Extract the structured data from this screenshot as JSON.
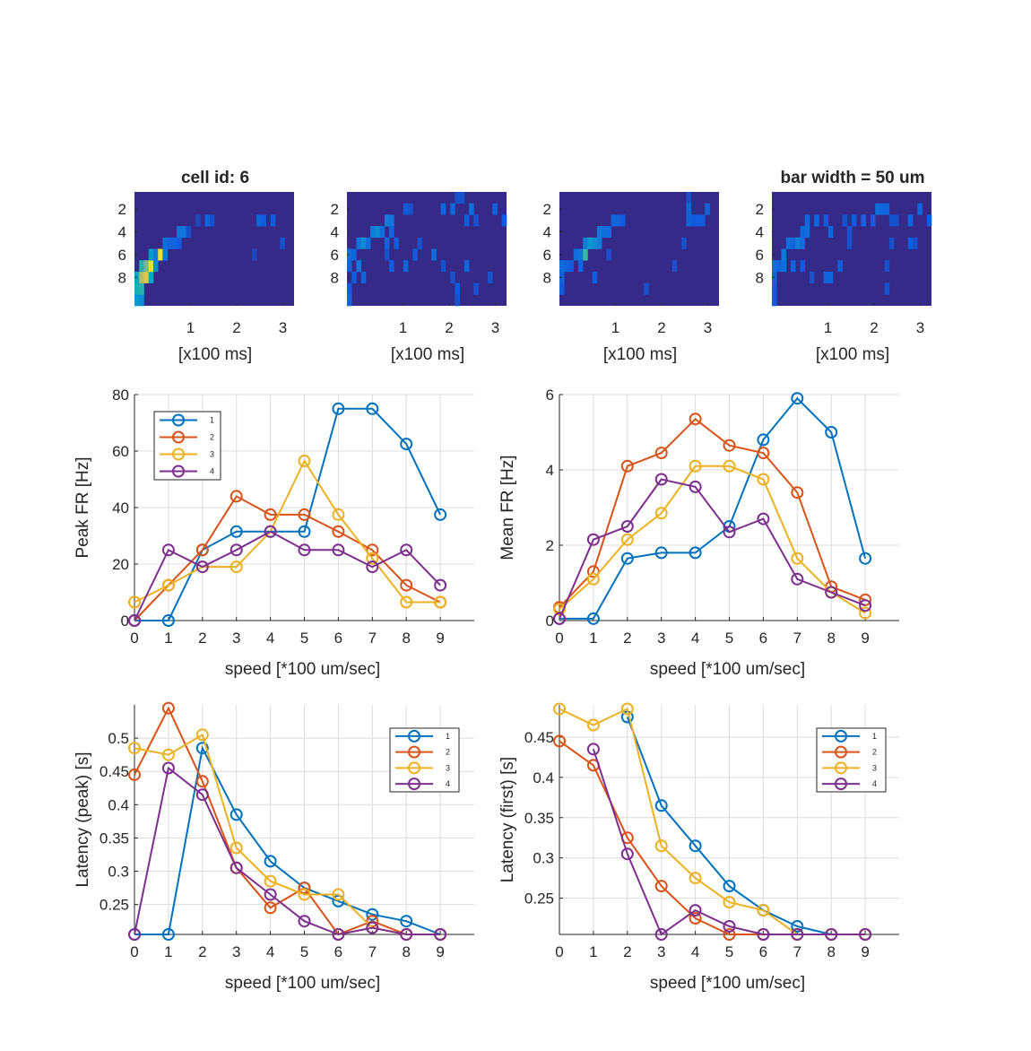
{
  "figure": {
    "heatmap_title_left": "cell id: 6",
    "heatmap_title_right": "bar width = 50 um"
  },
  "colors": {
    "series": [
      "#0072BD",
      "#D95319",
      "#EDB120",
      "#7E2F8E"
    ],
    "heatmap_background": "#352A87",
    "grid": "#DCDCDC",
    "axis": "#262626"
  },
  "chart_data": [
    {
      "type": "heatmap",
      "xlabel": "[x100 ms]",
      "ytick_labels": [
        "2",
        "4",
        "6",
        "8"
      ],
      "xtick_labels": [
        "1",
        "2",
        "3"
      ],
      "rows": 10,
      "cols": 34,
      "cells": [
        [
          9,
          0,
          0.55
        ],
        [
          9,
          1,
          0.5
        ],
        [
          8,
          0,
          0.65
        ],
        [
          8,
          1,
          0.7
        ],
        [
          7,
          0,
          0.6
        ],
        [
          7,
          1,
          0.85
        ],
        [
          7,
          2,
          0.9
        ],
        [
          7,
          3,
          0.6
        ],
        [
          6,
          1,
          0.7
        ],
        [
          6,
          2,
          0.8
        ],
        [
          6,
          3,
          0.95
        ],
        [
          6,
          4,
          0.5
        ],
        [
          5,
          3,
          0.55
        ],
        [
          5,
          4,
          0.45
        ],
        [
          5,
          5,
          0.95
        ],
        [
          5,
          6,
          0.4
        ],
        [
          4,
          6,
          0.35
        ],
        [
          4,
          7,
          0.3
        ],
        [
          4,
          8,
          0.3
        ],
        [
          4,
          9,
          0.25
        ],
        [
          3,
          9,
          0.4
        ],
        [
          3,
          10,
          0.4
        ],
        [
          3,
          11,
          0.2
        ],
        [
          2,
          13,
          0.15
        ],
        [
          2,
          15,
          0.3
        ],
        [
          2,
          16,
          0.2
        ],
        [
          5,
          25,
          0.15
        ],
        [
          2,
          26,
          0.3
        ],
        [
          2,
          27,
          0.25
        ],
        [
          2,
          29,
          0.25
        ],
        [
          4,
          31,
          0.2
        ]
      ]
    },
    {
      "type": "heatmap",
      "xlabel": "[x100 ms]",
      "ytick_labels": [
        "2",
        "4",
        "6",
        "8"
      ],
      "xtick_labels": [
        "1",
        "2",
        "3"
      ],
      "rows": 10,
      "cols": 34,
      "cells": [
        [
          5,
          0,
          0.35
        ],
        [
          5,
          1,
          0.3
        ],
        [
          6,
          0,
          0.3
        ],
        [
          6,
          2,
          0.4
        ],
        [
          7,
          1,
          0.25
        ],
        [
          7,
          3,
          0.3
        ],
        [
          8,
          0,
          0.25
        ],
        [
          9,
          0,
          0.3
        ],
        [
          4,
          2,
          0.4
        ],
        [
          4,
          3,
          0.5
        ],
        [
          4,
          4,
          0.35
        ],
        [
          3,
          5,
          0.45
        ],
        [
          3,
          6,
          0.5
        ],
        [
          3,
          7,
          0.35
        ],
        [
          2,
          8,
          0.45
        ],
        [
          2,
          9,
          0.4
        ],
        [
          4,
          8,
          0.3
        ],
        [
          3,
          9,
          0.3
        ],
        [
          4,
          10,
          0.25
        ],
        [
          1,
          12,
          0.25
        ],
        [
          1,
          13,
          0.2
        ],
        [
          5,
          8,
          0.2
        ],
        [
          6,
          9,
          0.25
        ],
        [
          6,
          12,
          0.3
        ],
        [
          5,
          18,
          0.35
        ],
        [
          6,
          20,
          0.2
        ],
        [
          7,
          22,
          0.2
        ],
        [
          8,
          23,
          0.25
        ],
        [
          1,
          20,
          0.3
        ],
        [
          1,
          22,
          0.3
        ],
        [
          0,
          23,
          0.2
        ],
        [
          0,
          24,
          0.2
        ],
        [
          2,
          25,
          0.25
        ],
        [
          1,
          26,
          0.35
        ],
        [
          2,
          27,
          0.2
        ],
        [
          1,
          31,
          0.3
        ],
        [
          2,
          33,
          0.25
        ],
        [
          6,
          25,
          0.3
        ],
        [
          8,
          27,
          0.2
        ],
        [
          9,
          23,
          0.2
        ],
        [
          7,
          30,
          0.2
        ],
        [
          4,
          15,
          0.2
        ],
        [
          5,
          14,
          0.25
        ]
      ]
    },
    {
      "type": "heatmap",
      "xlabel": "[x100 ms]",
      "ytick_labels": [
        "2",
        "4",
        "6",
        "8"
      ],
      "xtick_labels": [
        "1",
        "2",
        "3"
      ],
      "rows": 10,
      "cols": 34,
      "cells": [
        [
          6,
          0,
          0.35
        ],
        [
          6,
          1,
          0.3
        ],
        [
          6,
          2,
          0.25
        ],
        [
          7,
          0,
          0.3
        ],
        [
          8,
          0,
          0.25
        ],
        [
          5,
          3,
          0.35
        ],
        [
          5,
          4,
          0.4
        ],
        [
          5,
          5,
          0.75
        ],
        [
          4,
          5,
          0.45
        ],
        [
          4,
          6,
          0.55
        ],
        [
          4,
          7,
          0.5
        ],
        [
          4,
          8,
          0.45
        ],
        [
          3,
          8,
          0.4
        ],
        [
          3,
          9,
          0.35
        ],
        [
          3,
          10,
          0.35
        ],
        [
          2,
          11,
          0.3
        ],
        [
          2,
          12,
          0.3
        ],
        [
          2,
          13,
          0.25
        ],
        [
          6,
          4,
          0.3
        ],
        [
          7,
          7,
          0.25
        ],
        [
          8,
          18,
          0.2
        ],
        [
          6,
          24,
          0.2
        ],
        [
          4,
          26,
          0.2
        ],
        [
          5,
          10,
          0.2
        ],
        [
          1,
          27,
          0.3
        ],
        [
          2,
          27,
          0.3
        ],
        [
          2,
          28,
          0.25
        ],
        [
          2,
          29,
          0.25
        ],
        [
          2,
          30,
          0.25
        ],
        [
          0,
          27,
          0.2
        ],
        [
          1,
          31,
          0.3
        ]
      ]
    },
    {
      "type": "heatmap",
      "xlabel": "[x100 ms]",
      "ytick_labels": [
        "2",
        "4",
        "6",
        "8"
      ],
      "xtick_labels": [
        "1",
        "2",
        "3"
      ],
      "rows": 10,
      "cols": 34,
      "cells": [
        [
          6,
          0,
          0.35
        ],
        [
          7,
          0,
          0.3
        ],
        [
          8,
          0,
          0.25
        ],
        [
          9,
          0,
          0.25
        ],
        [
          6,
          1,
          0.3
        ],
        [
          6,
          2,
          0.35
        ],
        [
          5,
          2,
          0.4
        ],
        [
          4,
          3,
          0.35
        ],
        [
          4,
          4,
          0.3
        ],
        [
          4,
          5,
          0.45
        ],
        [
          4,
          6,
          0.35
        ],
        [
          3,
          6,
          0.3
        ],
        [
          3,
          7,
          0.35
        ],
        [
          2,
          7,
          0.3
        ],
        [
          2,
          9,
          0.3
        ],
        [
          2,
          11,
          0.25
        ],
        [
          3,
          12,
          0.3
        ],
        [
          6,
          4,
          0.3
        ],
        [
          6,
          6,
          0.25
        ],
        [
          7,
          8,
          0.2
        ],
        [
          7,
          11,
          0.3
        ],
        [
          7,
          12,
          0.3
        ],
        [
          6,
          14,
          0.25
        ],
        [
          2,
          15,
          0.2
        ],
        [
          3,
          16,
          0.2
        ],
        [
          4,
          16,
          0.2
        ],
        [
          2,
          17,
          0.25
        ],
        [
          2,
          19,
          0.3
        ],
        [
          2,
          21,
          0.25
        ],
        [
          1,
          22,
          0.35
        ],
        [
          1,
          23,
          0.3
        ],
        [
          1,
          24,
          0.3
        ],
        [
          2,
          25,
          0.2
        ],
        [
          2,
          26,
          0.2
        ],
        [
          4,
          25,
          0.2
        ],
        [
          2,
          29,
          0.3
        ],
        [
          1,
          31,
          0.3
        ],
        [
          4,
          29,
          0.25
        ],
        [
          4,
          30,
          0.2
        ],
        [
          6,
          24,
          0.2
        ],
        [
          2,
          33,
          0.25
        ],
        [
          8,
          24,
          0.2
        ]
      ]
    },
    {
      "type": "line",
      "xlabel": "speed [*100 um/sec]",
      "ylabel": "Peak FR [Hz]",
      "x": [
        0,
        1,
        2,
        3,
        4,
        5,
        6,
        7,
        8,
        9
      ],
      "xlim": [
        0,
        10
      ],
      "ylim": [
        0,
        80
      ],
      "yticks": [
        0,
        20,
        40,
        60,
        80
      ],
      "ytick_labels": [
        "0",
        "20",
        "40",
        "60",
        "80"
      ],
      "grid": true,
      "legend": "top-left",
      "series": [
        {
          "name": "1",
          "values": [
            0,
            0,
            25,
            31.5,
            31.5,
            31.5,
            75,
            75,
            62.5,
            37.5
          ]
        },
        {
          "name": "2",
          "values": [
            0,
            12.5,
            25,
            44,
            37.5,
            37.5,
            31.5,
            25,
            12.5,
            6.5
          ]
        },
        {
          "name": "3",
          "values": [
            6.5,
            12.5,
            19,
            19,
            31.5,
            56.5,
            37.5,
            22,
            6.5,
            6.5
          ]
        },
        {
          "name": "4",
          "values": [
            0,
            25,
            19,
            25,
            31.5,
            25,
            25,
            19,
            25,
            12.5
          ]
        }
      ]
    },
    {
      "type": "line",
      "xlabel": "speed [*100 um/sec]",
      "ylabel": "Mean FR [Hz]",
      "x": [
        0,
        1,
        2,
        3,
        4,
        5,
        6,
        7,
        8,
        9
      ],
      "xlim": [
        0,
        10
      ],
      "ylim": [
        0,
        6
      ],
      "yticks": [
        0,
        2,
        4,
        6
      ],
      "ytick_labels": [
        "0",
        "2",
        "4",
        "6"
      ],
      "grid": true,
      "series": [
        {
          "name": "1",
          "values": [
            0.05,
            0.05,
            1.65,
            1.8,
            1.8,
            2.5,
            4.8,
            5.9,
            5.0,
            1.65
          ]
        },
        {
          "name": "2",
          "values": [
            0.35,
            1.3,
            4.1,
            4.45,
            5.35,
            4.65,
            4.45,
            3.4,
            0.9,
            0.55
          ]
        },
        {
          "name": "3",
          "values": [
            0.3,
            1.1,
            2.15,
            2.85,
            4.1,
            4.1,
            3.75,
            1.65,
            0.75,
            0.2
          ]
        },
        {
          "name": "4",
          "values": [
            0.05,
            2.15,
            2.5,
            3.75,
            3.55,
            2.35,
            2.7,
            1.1,
            0.75,
            0.4
          ]
        }
      ]
    },
    {
      "type": "line",
      "xlabel": "speed [*100 um/sec]",
      "ylabel": "Latency (peak) [s]",
      "x": [
        0,
        1,
        2,
        3,
        4,
        5,
        6,
        7,
        8,
        9
      ],
      "xlim": [
        0,
        10
      ],
      "ylim": [
        0.205,
        0.55
      ],
      "yticks": [
        0.25,
        0.3,
        0.35,
        0.4,
        0.45,
        0.5
      ],
      "ytick_labels": [
        "0.25",
        "0.3",
        "0.35",
        "0.4",
        "0.45",
        "0.5"
      ],
      "grid": true,
      "legend": "top-right",
      "series": [
        {
          "name": "1",
          "values": [
            0.205,
            0.205,
            0.485,
            0.385,
            0.315,
            0.275,
            0.255,
            0.235,
            0.225,
            0.205
          ]
        },
        {
          "name": "2",
          "values": [
            0.445,
            0.545,
            0.435,
            0.305,
            0.245,
            0.275,
            0.205,
            0.225,
            0.205,
            0.205
          ]
        },
        {
          "name": "3",
          "values": [
            0.485,
            0.475,
            0.505,
            0.335,
            0.285,
            0.265,
            0.265,
            0.215,
            0.205,
            0.205
          ]
        },
        {
          "name": "4",
          "values": [
            0.205,
            0.455,
            0.415,
            0.305,
            0.265,
            0.225,
            0.205,
            0.215,
            0.205,
            0.205
          ]
        }
      ]
    },
    {
      "type": "line",
      "xlabel": "speed [*100 um/sec]",
      "ylabel": "Latency (first) [s]",
      "x": [
        0,
        1,
        2,
        3,
        4,
        5,
        6,
        7,
        8,
        9
      ],
      "xlim": [
        0,
        10
      ],
      "ylim": [
        0.205,
        0.49
      ],
      "yticks": [
        0.25,
        0.3,
        0.35,
        0.4,
        0.45
      ],
      "ytick_labels": [
        "0.25",
        "0.3",
        "0.35",
        "0.4",
        "0.45"
      ],
      "grid": true,
      "legend": "top-right",
      "series": [
        {
          "name": "1",
          "values": [
            null,
            null,
            0.475,
            0.365,
            0.315,
            0.265,
            0.235,
            0.215,
            0.205,
            0.205
          ]
        },
        {
          "name": "2",
          "values": [
            0.445,
            0.415,
            0.325,
            0.265,
            0.225,
            0.205,
            0.205,
            0.205,
            0.205,
            0.205
          ]
        },
        {
          "name": "3",
          "values": [
            0.485,
            0.465,
            0.485,
            0.315,
            0.275,
            0.245,
            0.235,
            0.205,
            0.205,
            0.205
          ]
        },
        {
          "name": "4",
          "values": [
            null,
            0.435,
            0.305,
            0.205,
            0.235,
            0.215,
            0.205,
            0.205,
            0.205,
            0.205
          ]
        }
      ]
    }
  ]
}
